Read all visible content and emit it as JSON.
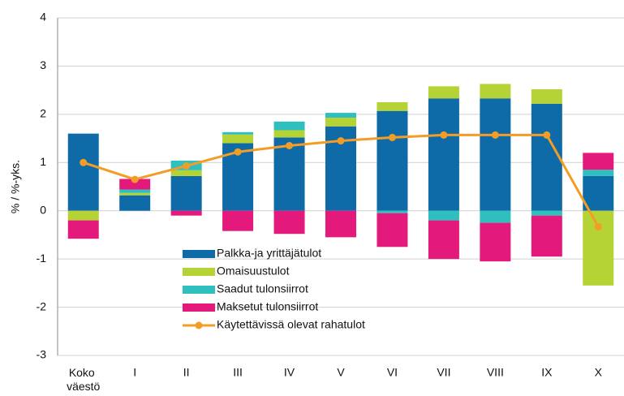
{
  "chart_data": {
    "type": "bar",
    "y_label": "% / %-yks.",
    "categories": [
      "Koko väestö",
      "I",
      "II",
      "III",
      "IV",
      "V",
      "VI",
      "VII",
      "VIII",
      "IX",
      "X"
    ],
    "series": [
      {
        "name": "Palkka-ja yrittäjätulot",
        "color": "#0f6aa8",
        "values": [
          1.6,
          0.32,
          0.72,
          1.4,
          1.52,
          1.75,
          2.07,
          2.33,
          2.33,
          2.22,
          0.72
        ]
      },
      {
        "name": "Omaisuustulot",
        "color": "#b5d334",
        "values": [
          -0.2,
          0.05,
          0.12,
          0.18,
          0.15,
          0.18,
          0.18,
          0.25,
          0.3,
          0.3,
          -1.55
        ]
      },
      {
        "name": "Saadut tulonsiirrot",
        "color": "#2fbfbf",
        "values": [
          0,
          0.07,
          0.2,
          0.05,
          0.18,
          0.1,
          -0.05,
          -0.2,
          -0.25,
          -0.1,
          0.13
        ]
      },
      {
        "name": "Maksetut tulonsiirrot",
        "color": "#e3197b",
        "values": [
          -0.38,
          0.22,
          -0.1,
          -0.42,
          -0.48,
          -0.55,
          -0.7,
          -0.8,
          -0.8,
          -0.85,
          0.35
        ]
      }
    ],
    "line": {
      "name": "Käytettävissä olevat rahatulot",
      "color": "#f39c26",
      "values": [
        1.0,
        0.65,
        0.93,
        1.22,
        1.35,
        1.45,
        1.52,
        1.57,
        1.57,
        1.57,
        -0.33
      ]
    },
    "ylim": [
      -3,
      4
    ],
    "yticks": [
      -3,
      -2,
      -1,
      0,
      1,
      2,
      3,
      4
    ],
    "grid": true
  }
}
